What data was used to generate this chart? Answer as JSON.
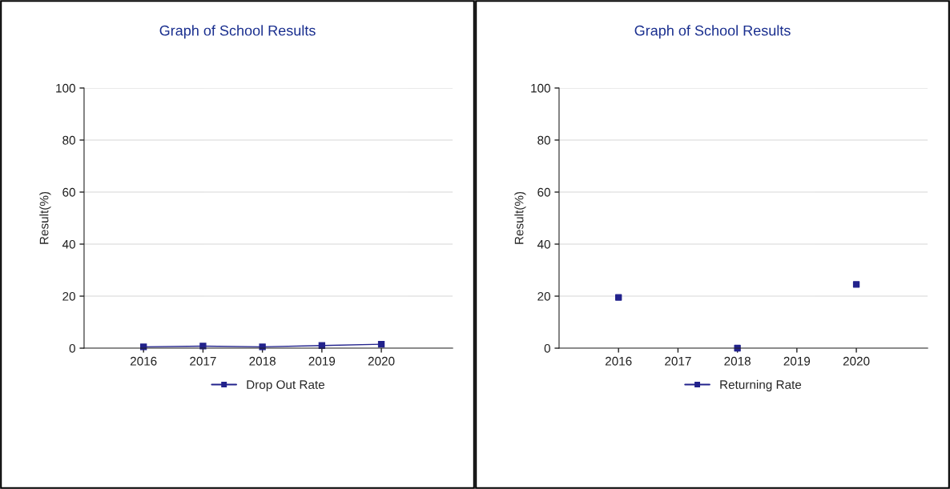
{
  "chart_data": [
    {
      "type": "line",
      "title": "Graph of School Results",
      "ylabel": "Result(%)",
      "categories": [
        "2016",
        "2017",
        "2018",
        "2019",
        "2020"
      ],
      "series": [
        {
          "name": "Drop Out Rate",
          "color": "#22228c",
          "values": [
            0.5,
            0.8,
            0.5,
            1,
            1.5
          ]
        }
      ],
      "ylim": [
        0,
        100
      ],
      "yticks": [
        0,
        20,
        40,
        60,
        80,
        100
      ],
      "grid": "y",
      "legend": "bottom",
      "marker": "square",
      "line_style": "solid"
    },
    {
      "type": "line",
      "title": "Graph of School Results",
      "ylabel": "Result(%)",
      "categories": [
        "2016",
        "2017",
        "2018",
        "2019",
        "2020"
      ],
      "series": [
        {
          "name": "Returning Rate",
          "type": "scatter",
          "color": "#22228c",
          "values": [
            19.5,
            null,
            0,
            null,
            24.5
          ]
        }
      ],
      "ylim": [
        0,
        100
      ],
      "yticks": [
        0,
        20,
        40,
        60,
        80,
        100
      ],
      "grid": "y",
      "legend": "bottom",
      "marker": "square",
      "line_style": "solid"
    }
  ]
}
